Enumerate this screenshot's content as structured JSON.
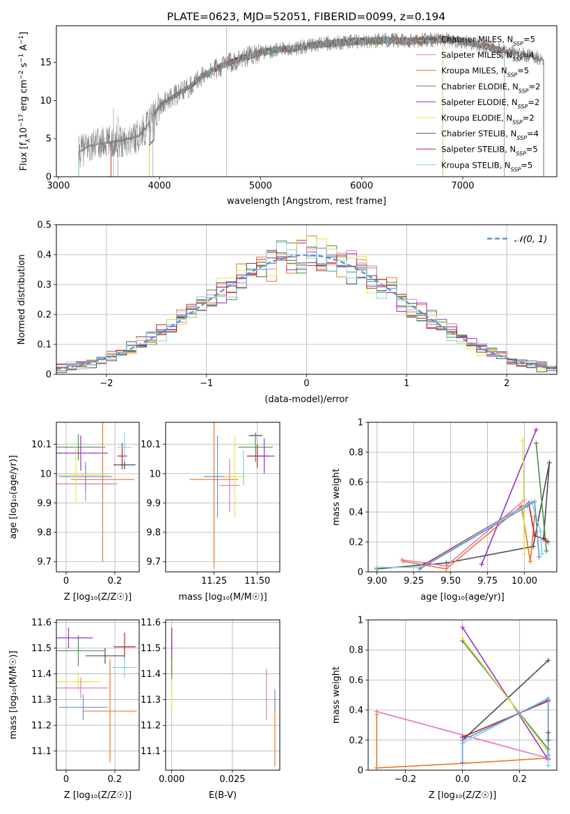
{
  "figure": {
    "title": "PLATE=0623, MJD=52051, FIBERID=0099, z=0.194"
  },
  "colors": {
    "Chabrier MILES": "#4a4a4a",
    "Salpeter MILES": "#e377c2",
    "Kroupa MILES": "#b8860b",
    "Chabrier ELODIE": "#4e8b4e",
    "Salpeter ELODIE": "#9b30c4",
    "Kroupa ELODIE": "#dde84a",
    "Chabrier STELIB": "#555555",
    "Salpeter STELIB": "#b22222",
    "Kroupa STELIB": "#7fd3e0",
    "blue": "#6a8fd8",
    "orange": "#e87722",
    "pink": "#e377c2",
    "lime": "#c8f060",
    "gaussian": "#5b8fd6"
  },
  "chart_data": [
    {
      "id": "spectrum",
      "type": "line",
      "xlabel": "wavelength [Angstrom, rest frame]",
      "ylabel": "Flux [f_λ 10^-17 erg cm^-2 s^-1 A^-1]",
      "xlim": [
        2980,
        7930
      ],
      "ylim": [
        0,
        19.8
      ],
      "xticks": [
        3000,
        4000,
        5000,
        6000,
        7000
      ],
      "yticks": [
        0,
        5,
        10,
        15
      ],
      "grid": false,
      "legend_position": "lower-right",
      "legend": [
        {
          "text": "Chabrier MILES, N",
          "sub": "SSP",
          "val": "=5"
        },
        {
          "text": "Salpeter MILES, N",
          "sub": "SSP",
          "val": "=4"
        },
        {
          "text": "Kroupa MILES, N",
          "sub": "SSP",
          "val": "=5"
        },
        {
          "text": "Chabrier ELODIE, N",
          "sub": "SSP",
          "val": "=2"
        },
        {
          "text": "Salpeter ELODIE, N",
          "sub": "SSP",
          "val": "=2"
        },
        {
          "text": "Kroupa ELODIE, N",
          "sub": "SSP",
          "val": "=2"
        },
        {
          "text": "Chabrier STELIB, N",
          "sub": "SSP",
          "val": "=4"
        },
        {
          "text": "Salpeter STELIB, N",
          "sub": "SSP",
          "val": "=5"
        },
        {
          "text": "Kroupa STELIB, N",
          "sub": "SSP",
          "val": "=5"
        }
      ],
      "data_continuum": {
        "x": [
          3200,
          3300,
          3400,
          3500,
          3600,
          3700,
          3800,
          3900,
          4000,
          4100,
          4200,
          4300,
          4400,
          4500,
          4600,
          4700,
          4800,
          4900,
          5000,
          5100,
          5200,
          5300,
          5400,
          5500,
          5600,
          5700,
          5800,
          5900,
          6000,
          6100,
          6200,
          6300,
          6400,
          6500,
          6600,
          6700,
          6800,
          6900,
          7000,
          7100,
          7200,
          7300,
          7400,
          7500,
          7600,
          7700,
          7800
        ],
        "y": [
          3.2,
          4.0,
          4.3,
          4.5,
          4.7,
          5.0,
          5.4,
          7.0,
          9.3,
          10.2,
          11.0,
          11.8,
          13.0,
          13.8,
          14.4,
          15.0,
          15.5,
          15.9,
          16.3,
          16.5,
          16.7,
          16.8,
          17.0,
          17.2,
          17.4,
          17.5,
          17.6,
          17.7,
          17.8,
          17.8,
          17.9,
          17.9,
          17.8,
          17.8,
          17.9,
          18.0,
          18.0,
          17.9,
          17.7,
          17.5,
          17.2,
          16.9,
          16.6,
          16.3,
          16.0,
          15.7,
          15.4
        ]
      },
      "model_ranges": [
        [
          3200,
          7800
        ],
        [
          3520,
          6800
        ],
        [
          3520,
          7410
        ],
        [
          3900,
          6800
        ],
        [
          3900,
          6800
        ],
        [
          3900,
          6800
        ],
        [
          3200,
          7410
        ],
        [
          3520,
          7410
        ],
        [
          3200,
          7410
        ]
      ]
    },
    {
      "id": "residuals",
      "type": "line",
      "xlabel": "(data-model)/error",
      "ylabel": "Normed distribution",
      "xlim": [
        -2.5,
        2.5
      ],
      "ylim": [
        0,
        0.5
      ],
      "xticks": [
        -2,
        -1,
        0,
        1,
        2
      ],
      "xticklabels": [
        "−2",
        "−1",
        "0",
        "1",
        "2"
      ],
      "yticks": [
        0,
        0.1,
        0.2,
        0.3,
        0.4,
        0.5
      ],
      "grid": true,
      "legend": [
        {
          "text": "𝒩(0, 1)"
        }
      ],
      "legend_position": "top-right",
      "series_count": 9,
      "bin_width": 0.1
    },
    {
      "id": "age_vs_Z",
      "type": "scatter",
      "xlabel": "Z [log₁₀(Z/Z☉)]",
      "ylabel": "age  [log₁₀(age/yr)]",
      "xlim": [
        -0.04,
        0.3
      ],
      "ylim": [
        9.665,
        10.175
      ],
      "xticks": [
        0.0,
        0.2
      ],
      "yticks": [
        9.7,
        9.8,
        9.9,
        10.0,
        10.1
      ],
      "grid": true,
      "points": [
        {
          "x": 0.24,
          "xerr": 0.045,
          "y": 10.03,
          "yerr": 0.015,
          "c": "#4a4a4a"
        },
        {
          "x": 0.23,
          "xerr": 0.02,
          "y": 10.06,
          "yerr": 0.045,
          "c": "#b22222"
        },
        {
          "x": 0.05,
          "xerr": 0.11,
          "y": 10.09,
          "yerr": 0.045,
          "c": "#4e8b4e"
        },
        {
          "x": 0.06,
          "xerr": 0.11,
          "y": 10.07,
          "yerr": 0.06,
          "c": "#9b30c4"
        },
        {
          "x": 0.15,
          "xerr": 0.13,
          "y": 9.98,
          "yerr": 0.28,
          "c": "#e87722"
        },
        {
          "x": 0.08,
          "xerr": 0.13,
          "y": 9.965,
          "yerr": 0.06,
          "c": "#e377c2"
        },
        {
          "x": 0.08,
          "xerr": 0.11,
          "y": 9.99,
          "yerr": 0.05,
          "c": "#6a8fd8"
        },
        {
          "x": 0.04,
          "xerr": 0.13,
          "y": 9.995,
          "yerr": 0.09,
          "c": "#dde84a"
        },
        {
          "x": 0.24,
          "xerr": 0.03,
          "y": 10.09,
          "yerr": 0.05,
          "c": "#7fd3e0"
        }
      ]
    },
    {
      "id": "age_vs_mass",
      "type": "scatter",
      "xlabel": "mass [log₁₀(M/M☉)]",
      "ylabel": "",
      "xlim": [
        10.97,
        11.63
      ],
      "ylim": [
        9.665,
        10.175
      ],
      "xticks": [
        11.25,
        11.5
      ],
      "xticklabels": [
        "11.25",
        "11.50"
      ],
      "yticks": [
        9.7,
        9.8,
        9.9,
        10.0,
        10.1
      ],
      "grid": true,
      "points": [
        {
          "x": 11.49,
          "xerr": 0.04,
          "y": 10.13,
          "yerr": 0.0,
          "c": "#4a4a4a"
        },
        {
          "x": 11.5,
          "xerr": 0.06,
          "y": 10.06,
          "yerr": 0.04,
          "c": "#b22222"
        },
        {
          "x": 11.49,
          "xerr": 0.1,
          "y": 10.09,
          "yerr": 0.05,
          "c": "#4e8b4e"
        },
        {
          "x": 11.54,
          "xerr": 0.06,
          "y": 10.06,
          "yerr": 0.06,
          "c": "#9b30c4"
        },
        {
          "x": 11.25,
          "xerr": 0.14,
          "y": 9.98,
          "yerr": 0.3,
          "c": "#e87722"
        },
        {
          "x": 11.34,
          "xerr": 0.06,
          "y": 9.96,
          "yerr": 0.09,
          "c": "#e377c2"
        },
        {
          "x": 11.27,
          "xerr": 0.08,
          "y": 9.99,
          "yerr": 0.14,
          "c": "#6a8fd8"
        },
        {
          "x": 11.37,
          "xerr": 0.06,
          "y": 9.99,
          "yerr": 0.14,
          "c": "#dde84a"
        },
        {
          "x": 11.42,
          "xerr": 0.0,
          "y": 10.02,
          "yerr": 0.06,
          "c": "#7fd3e0"
        }
      ]
    },
    {
      "id": "weight_vs_age",
      "type": "line",
      "xlabel": "age  [log₁₀(age/yr)]",
      "ylabel": "mass weight",
      "xlim": [
        8.94,
        10.22
      ],
      "ylim": [
        0,
        1.0
      ],
      "xticks": [
        9.0,
        9.25,
        9.5,
        9.75,
        10.0
      ],
      "xticklabels": [
        "9.00",
        "9.25",
        "9.50",
        "9.75",
        "10.00"
      ],
      "yticks": [
        0,
        0.2,
        0.4,
        0.6,
        0.8,
        1.0
      ],
      "grid": true,
      "series": [
        {
          "c": "#4a4a4a",
          "x": [
            9.0,
            9.47,
            10.06,
            10.17,
            10.13,
            10.16
          ],
          "y": [
            0.02,
            0.06,
            0.17,
            0.73,
            0.22,
            0.2
          ]
        },
        {
          "c": "#e377c2",
          "x": [
            9.17,
            9.47,
            10.0
          ],
          "y": [
            0.08,
            0.04,
            0.48
          ]
        },
        {
          "c": "#e87722",
          "x": [
            9.18,
            9.47,
            9.98,
            10.04,
            10.07
          ],
          "y": [
            0.07,
            0.02,
            0.44,
            0.07,
            0.37
          ]
        },
        {
          "c": "#4e8b4e",
          "x": [
            10.08,
            10.15
          ],
          "y": [
            0.86,
            0.14
          ]
        },
        {
          "c": "#9b30c4",
          "x": [
            9.71,
            10.08
          ],
          "y": [
            0.05,
            0.95
          ]
        },
        {
          "c": "#dde84a",
          "x": [
            9.99,
            10.0
          ],
          "y": [
            0.88,
            0.12
          ]
        },
        {
          "c": "#b22222",
          "x": [
            9.32,
            10.03,
            10.07,
            10.14
          ],
          "y": [
            0.05,
            0.46,
            0.24,
            0.22
          ]
        },
        {
          "c": "#7fd3e0",
          "x": [
            9.0,
            9.3,
            10.05,
            10.11,
            10.12
          ],
          "y": [
            0.03,
            0.03,
            0.47,
            0.27,
            0.12
          ]
        },
        {
          "c": "#6a8fd8",
          "x": [
            9.29,
            10.02,
            10.07,
            10.1
          ],
          "y": [
            0.02,
            0.44,
            0.47,
            0.1
          ]
        }
      ]
    },
    {
      "id": "mass_vs_Z",
      "type": "scatter",
      "xlabel": "Z [log₁₀(Z/Z☉)]",
      "ylabel": "mass [log₁₀(M/M☉)]",
      "xlim": [
        -0.04,
        0.3
      ],
      "ylim": [
        11.025,
        11.61
      ],
      "xticks": [
        0.0,
        0.2
      ],
      "yticks": [
        11.1,
        11.2,
        11.3,
        11.4,
        11.5,
        11.6
      ],
      "grid": true,
      "points": [
        {
          "x": 0.24,
          "xerr": 0.045,
          "y": 11.505,
          "yerr": 0.055,
          "c": "#b22222"
        },
        {
          "x": 0.16,
          "xerr": 0.08,
          "y": 11.47,
          "yerr": 0.03,
          "c": "#4a4a4a"
        },
        {
          "x": 0.05,
          "xerr": 0.11,
          "y": 11.49,
          "yerr": 0.06,
          "c": "#4e8b4e"
        },
        {
          "x": 0.01,
          "xerr": 0.1,
          "y": 11.54,
          "yerr": 0.04,
          "c": "#9b30c4"
        },
        {
          "x": 0.24,
          "xerr": 0.05,
          "y": 11.425,
          "yerr": 0.04,
          "c": "#7fd3e0"
        },
        {
          "x": 0.05,
          "xerr": 0.09,
          "y": 11.37,
          "yerr": 0.04,
          "c": "#dde84a"
        },
        {
          "x": 0.06,
          "xerr": 0.11,
          "y": 11.345,
          "yerr": 0.04,
          "c": "#e377c2"
        },
        {
          "x": 0.07,
          "xerr": 0.1,
          "y": 11.27,
          "yerr": 0.05,
          "c": "#6a8fd8"
        },
        {
          "x": 0.18,
          "xerr": 0.11,
          "y": 11.255,
          "yerr": 0.2,
          "c": "#e87722"
        }
      ]
    },
    {
      "id": "mass_vs_ebv",
      "type": "scatter",
      "xlabel": "E(B-V)",
      "ylabel": "",
      "xlim": [
        -0.0025,
        0.0445
      ],
      "ylim": [
        11.025,
        11.61
      ],
      "xticks": [
        0.0,
        0.025
      ],
      "xticklabels": [
        "0.000",
        "0.025"
      ],
      "yticks": [
        11.1,
        11.2,
        11.3,
        11.4,
        11.5,
        11.6
      ],
      "grid": true,
      "points": [
        {
          "x": 0.0,
          "xerr": 0.0,
          "y": 11.5,
          "yerr": 0.08,
          "c": "#b22222"
        },
        {
          "x": 0.0,
          "xerr": 0.0,
          "y": 11.5,
          "yerr": 0.05,
          "c": "#9b30c4"
        },
        {
          "x": 0.0,
          "xerr": 0.0,
          "y": 11.35,
          "yerr": 0.1,
          "c": "#dde84a"
        },
        {
          "x": 0.0,
          "xerr": 0.0,
          "y": 11.43,
          "yerr": 0.05,
          "c": "#4e8b4e"
        },
        {
          "x": 0.039,
          "xerr": 0.0,
          "y": 11.32,
          "yerr": 0.1,
          "c": "#e377c2"
        },
        {
          "x": 0.0425,
          "xerr": 0.0,
          "y": 11.17,
          "yerr": 0.13,
          "c": "#e87722"
        },
        {
          "x": 0.0425,
          "xerr": 0.0,
          "y": 11.3,
          "yerr": 0.04,
          "c": "#6a8fd8"
        }
      ]
    },
    {
      "id": "weight_vs_Z",
      "type": "line",
      "xlabel": "Z [log₁₀(Z/Z☉)]",
      "ylabel": "mass weight",
      "xlim": [
        -0.33,
        0.33
      ],
      "ylim": [
        0,
        1.0
      ],
      "xticks": [
        -0.2,
        0.0,
        0.2
      ],
      "xticklabels": [
        "−0.2",
        "0.0",
        "0.2"
      ],
      "yticks": [
        0,
        0.2,
        0.4,
        0.6,
        0.8,
        1.0
      ],
      "grid": true,
      "series": [
        {
          "c": "#e87722",
          "x": [
            -0.3,
            -0.3,
            0.0,
            0.3
          ],
          "y": [
            0.37,
            0.015,
            0.045,
            0.08
          ]
        },
        {
          "c": "#e377c2",
          "x": [
            -0.3,
            0.3
          ],
          "y": [
            0.39,
            0.08
          ]
        },
        {
          "c": "#4a4a4a",
          "x": [
            0.0,
            0.3
          ],
          "y": [
            0.2,
            0.73
          ]
        },
        {
          "c": "#9b30c4",
          "x": [
            0.0,
            0.3
          ],
          "y": [
            0.95,
            0.07
          ]
        },
        {
          "c": "#4e8b4e",
          "x": [
            0.0,
            0.3
          ],
          "y": [
            0.86,
            0.14
          ]
        },
        {
          "c": "#dde84a",
          "x": [
            0.0,
            0.3
          ],
          "y": [
            0.88,
            0.12
          ]
        },
        {
          "c": "#b22222",
          "x": [
            0.0,
            0.3
          ],
          "y": [
            0.22,
            0.46
          ]
        },
        {
          "c": "#7fd3e0",
          "x": [
            0.0,
            0.3,
            0.3
          ],
          "y": [
            0.18,
            0.48,
            0.03
          ]
        },
        {
          "c": "#6a8fd8",
          "x": [
            0.0,
            0.0,
            0.3,
            0.3
          ],
          "y": [
            0.05,
            0.2,
            0.47,
            0.1
          ]
        },
        {
          "c": "#555555",
          "x": [
            0.3,
            0.3
          ],
          "y": [
            0.25,
            0.2
          ]
        }
      ]
    }
  ]
}
